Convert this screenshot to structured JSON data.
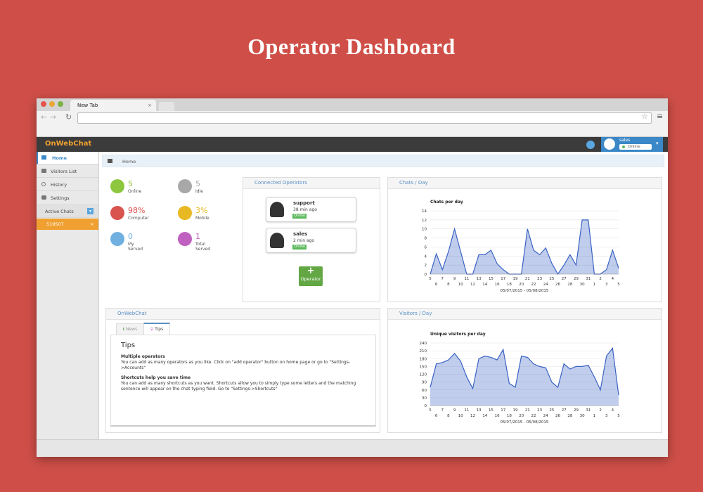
{
  "page_title": "Operator Dashboard",
  "browser": {
    "tab": "New Tab"
  },
  "app": {
    "logo": "OnWebChat",
    "user": {
      "name": "sales",
      "status": "Online"
    }
  },
  "sidebar": {
    "items": [
      "Home",
      "Visitors List",
      "History",
      "Settings"
    ],
    "active_chats": "Active Chats",
    "chat": "519507"
  },
  "breadcrumb": "Home",
  "stats": [
    {
      "value": "5",
      "label": "Online",
      "color": "#8dc63f"
    },
    {
      "value": "5",
      "label": "Idle",
      "color": "#a8a8a8"
    },
    {
      "value": "98%",
      "label": "Computer",
      "color": "#d9534f"
    },
    {
      "value": "3%",
      "label": "Mobile",
      "color": "#e8b923"
    },
    {
      "value": "0",
      "label": "My Served",
      "color": "#6fb0e0"
    },
    {
      "value": "1",
      "label": "Total Served",
      "color": "#c060c0"
    }
  ],
  "operators_panel": {
    "title": "Connected Operators",
    "operators": [
      {
        "name": "support",
        "time": "38 min ago",
        "status": "Online"
      },
      {
        "name": "sales",
        "time": "2 min ago",
        "status": "Online"
      }
    ],
    "button": "Operator"
  },
  "info_panel": {
    "title": "OnWebChat",
    "tabs": [
      "News",
      "Tips"
    ],
    "heading": "Tips",
    "sections": [
      {
        "title": "Multiple operators",
        "text": "You can add as many operators as you like. Click on \"add operator\" button on home page or go to \"Settings->Accounts\""
      },
      {
        "title": "Shortcuts help you save time",
        "text": "You can add as many shortcuts as you want. Shortcuts allow you to simply type some letters and the matching sentence will appear on the chat typing field. Go to \"Settings->Shortcuts\""
      }
    ]
  },
  "chart_data": [
    {
      "type": "area",
      "panel_title": "Chats / Day",
      "title": "Chats per day",
      "subtitle": "05/07/2015 - 05/08/2015",
      "categories": [
        "5",
        "6",
        "7",
        "8",
        "9",
        "10",
        "11",
        "12",
        "13",
        "14",
        "15",
        "16",
        "17",
        "18",
        "19",
        "20",
        "21",
        "22",
        "23",
        "24",
        "25",
        "26",
        "27",
        "28",
        "29",
        "30",
        "31",
        "1",
        "2",
        "3",
        "4",
        "5"
      ],
      "values": [
        0,
        4.5,
        1,
        5,
        10,
        5,
        0,
        0,
        4.3,
        4.3,
        5.3,
        2.3,
        1,
        0,
        0,
        0,
        10,
        5.3,
        4.3,
        5.8,
        2.4,
        0,
        2,
        4.3,
        2,
        12,
        12,
        0,
        0,
        1,
        5.3,
        1.3
      ],
      "color": "#3a62c4",
      "ylim": [
        0,
        14
      ],
      "yticks": [
        0,
        2,
        4,
        6,
        8,
        10,
        12,
        14
      ],
      "grid": true
    },
    {
      "type": "area",
      "panel_title": "Visitors / Day",
      "title": "Unique visitors per day",
      "subtitle": "05/07/2015 - 05/08/2015",
      "categories": [
        "5",
        "6",
        "7",
        "8",
        "9",
        "10",
        "11",
        "12",
        "13",
        "14",
        "15",
        "16",
        "17",
        "18",
        "19",
        "20",
        "21",
        "22",
        "23",
        "24",
        "25",
        "26",
        "27",
        "28",
        "29",
        "30",
        "31",
        "1",
        "2",
        "3",
        "4",
        "5"
      ],
      "values": [
        70,
        160,
        165,
        175,
        200,
        170,
        110,
        65,
        180,
        190,
        185,
        175,
        215,
        85,
        70,
        190,
        185,
        160,
        150,
        145,
        90,
        70,
        160,
        140,
        150,
        150,
        155,
        110,
        60,
        190,
        220,
        40
      ],
      "color": "#3a62c4",
      "ylim": [
        0,
        240
      ],
      "yticks": [
        0,
        30,
        60,
        90,
        120,
        150,
        180,
        210,
        240
      ],
      "grid": true
    }
  ]
}
